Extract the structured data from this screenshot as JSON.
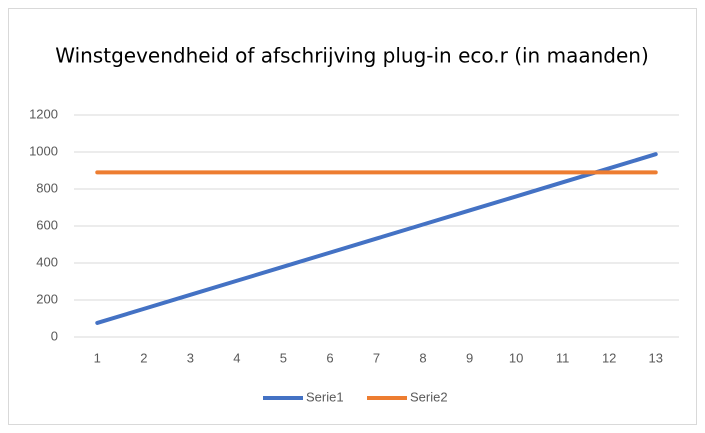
{
  "chart_data": {
    "type": "line",
    "title": "Winstgevendheid of afschrijving plug-in eco.r (in maanden)",
    "categories": [
      1,
      2,
      3,
      4,
      5,
      6,
      7,
      8,
      9,
      10,
      11,
      12,
      13
    ],
    "series": [
      {
        "name": "Serie1",
        "color": "#4472c4",
        "values": [
          76,
          152,
          228,
          304,
          380,
          456,
          532,
          608,
          684,
          760,
          836,
          912,
          988
        ]
      },
      {
        "name": "Serie2",
        "color": "#ed7d31",
        "values": [
          890,
          890,
          890,
          890,
          890,
          890,
          890,
          890,
          890,
          890,
          890,
          890,
          890
        ]
      }
    ],
    "ylim": [
      0,
      1200
    ],
    "yticks": [
      0,
      200,
      400,
      600,
      800,
      1000,
      1200
    ],
    "grid": true,
    "legend": "bottom"
  }
}
